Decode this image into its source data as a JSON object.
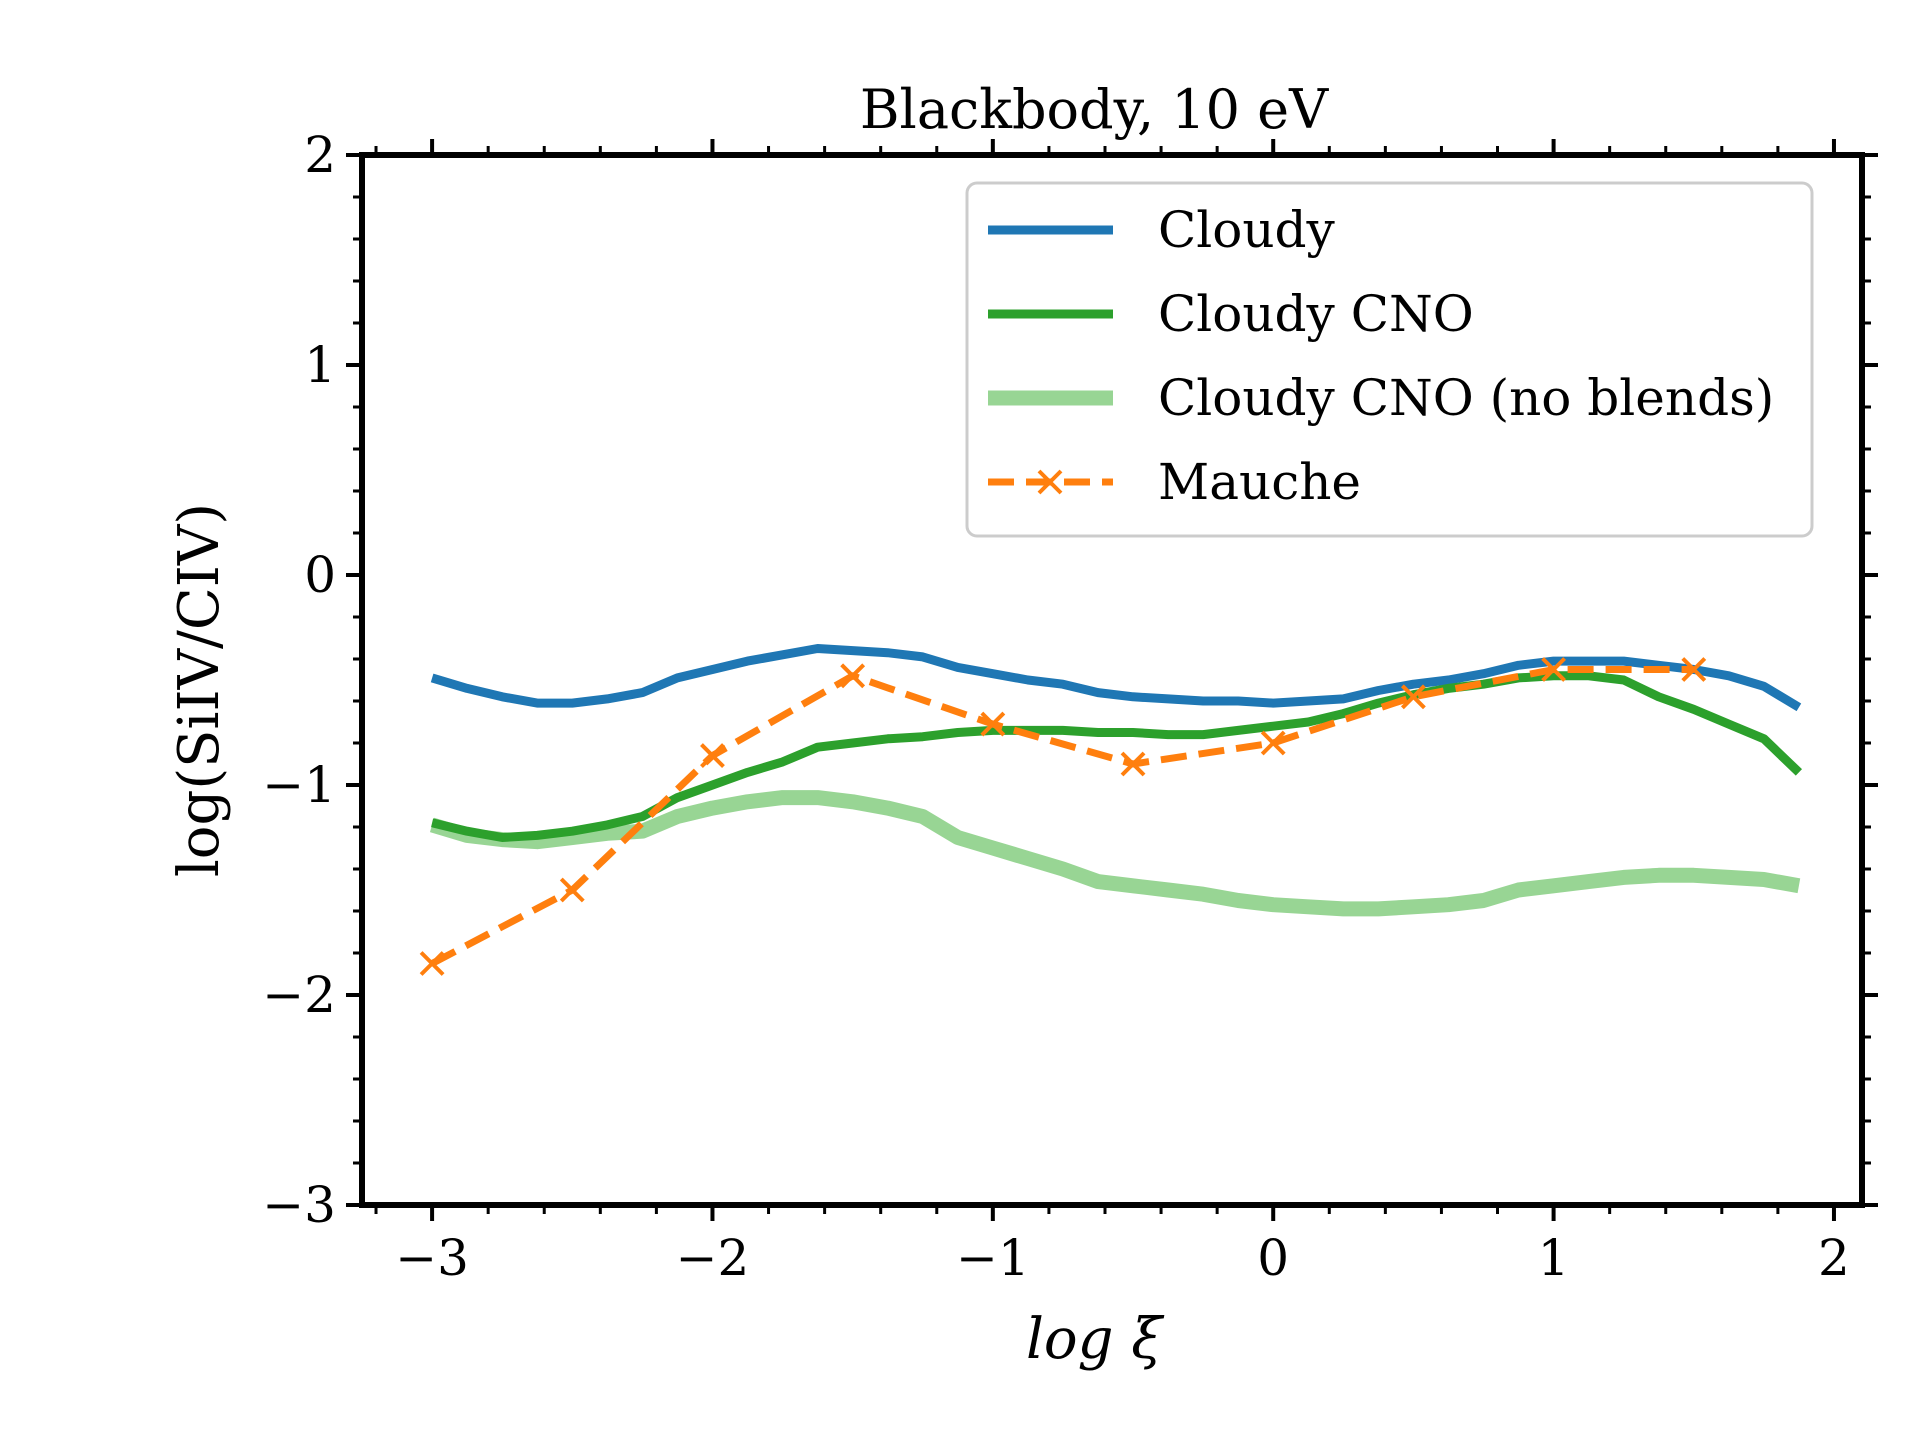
{
  "chart_data": {
    "type": "line",
    "title": "Blackbody, 10 eV",
    "xlabel": "log ξ",
    "ylabel": "log(SiIV/CIV)",
    "xlim": [
      -3.25,
      2.1
    ],
    "ylim": [
      -3,
      2
    ],
    "xticks": [
      -3,
      -2,
      -1,
      0,
      1,
      2
    ],
    "xtick_labels": [
      "−3",
      "−2",
      "−1",
      "0",
      "1",
      "2"
    ],
    "yticks": [
      -3,
      -2,
      -1,
      0,
      1,
      2
    ],
    "ytick_labels": [
      "−3",
      "−2",
      "−1",
      "0",
      "1",
      "2"
    ],
    "grid": false,
    "legend_position": "top-right",
    "series": [
      {
        "name": "Cloudy",
        "color": "#1f77b4",
        "style": "solid",
        "x": [
          -3.0,
          -2.875,
          -2.75,
          -2.625,
          -2.5,
          -2.375,
          -2.25,
          -2.125,
          -2.0,
          -1.875,
          -1.75,
          -1.625,
          -1.5,
          -1.375,
          -1.25,
          -1.125,
          -1.0,
          -0.875,
          -0.75,
          -0.625,
          -0.5,
          -0.375,
          -0.25,
          -0.125,
          0.0,
          0.125,
          0.25,
          0.375,
          0.5,
          0.625,
          0.75,
          0.875,
          1.0,
          1.125,
          1.25,
          1.375,
          1.5,
          1.625,
          1.75,
          1.875
        ],
        "y": [
          -0.49,
          -0.54,
          -0.58,
          -0.61,
          -0.61,
          -0.59,
          -0.56,
          -0.49,
          -0.45,
          -0.41,
          -0.38,
          -0.35,
          -0.36,
          -0.37,
          -0.39,
          -0.44,
          -0.47,
          -0.5,
          -0.52,
          -0.56,
          -0.58,
          -0.59,
          -0.6,
          -0.6,
          -0.61,
          -0.6,
          -0.59,
          -0.55,
          -0.52,
          -0.5,
          -0.47,
          -0.43,
          -0.41,
          -0.41,
          -0.41,
          -0.43,
          -0.45,
          -0.48,
          -0.53,
          -0.63
        ]
      },
      {
        "name": "Cloudy CNO",
        "color": "#2ca02c",
        "style": "solid",
        "x": [
          -3.0,
          -2.875,
          -2.75,
          -2.625,
          -2.5,
          -2.375,
          -2.25,
          -2.125,
          -2.0,
          -1.875,
          -1.75,
          -1.625,
          -1.5,
          -1.375,
          -1.25,
          -1.125,
          -1.0,
          -0.875,
          -0.75,
          -0.625,
          -0.5,
          -0.375,
          -0.25,
          -0.125,
          0.0,
          0.125,
          0.25,
          0.375,
          0.5,
          0.625,
          0.75,
          0.875,
          1.0,
          1.125,
          1.25,
          1.375,
          1.5,
          1.625,
          1.75,
          1.875
        ],
        "y": [
          -1.18,
          -1.22,
          -1.25,
          -1.24,
          -1.22,
          -1.19,
          -1.15,
          -1.06,
          -1.0,
          -0.94,
          -0.89,
          -0.82,
          -0.8,
          -0.78,
          -0.77,
          -0.75,
          -0.74,
          -0.74,
          -0.74,
          -0.75,
          -0.75,
          -0.76,
          -0.76,
          -0.74,
          -0.72,
          -0.7,
          -0.66,
          -0.61,
          -0.57,
          -0.54,
          -0.52,
          -0.49,
          -0.48,
          -0.48,
          -0.5,
          -0.58,
          -0.64,
          -0.71,
          -0.78,
          -0.94
        ]
      },
      {
        "name": "Cloudy CNO (no blends)",
        "color": "#98d594",
        "style": "solid",
        "x": [
          -3.0,
          -2.875,
          -2.75,
          -2.625,
          -2.5,
          -2.375,
          -2.25,
          -2.125,
          -2.0,
          -1.875,
          -1.75,
          -1.625,
          -1.5,
          -1.375,
          -1.25,
          -1.125,
          -1.0,
          -0.875,
          -0.75,
          -0.625,
          -0.5,
          -0.375,
          -0.25,
          -0.125,
          0.0,
          0.125,
          0.25,
          0.375,
          0.5,
          0.625,
          0.75,
          0.875,
          1.0,
          1.125,
          1.25,
          1.375,
          1.5,
          1.625,
          1.75,
          1.875
        ],
        "y": [
          -1.19,
          -1.24,
          -1.26,
          -1.27,
          -1.25,
          -1.23,
          -1.22,
          -1.15,
          -1.11,
          -1.08,
          -1.06,
          -1.06,
          -1.08,
          -1.11,
          -1.15,
          -1.25,
          -1.3,
          -1.35,
          -1.4,
          -1.46,
          -1.48,
          -1.5,
          -1.52,
          -1.55,
          -1.57,
          -1.58,
          -1.59,
          -1.59,
          -1.58,
          -1.57,
          -1.55,
          -1.5,
          -1.48,
          -1.46,
          -1.44,
          -1.43,
          -1.43,
          -1.44,
          -1.45,
          -1.48
        ]
      },
      {
        "name": "Mauche",
        "color": "#ff7f0e",
        "style": "dashed",
        "marker": "x",
        "x": [
          -3.0,
          -2.5,
          -2.0,
          -1.5,
          -1.0,
          -0.5,
          0.0,
          0.5,
          1.0,
          1.5
        ],
        "y": [
          -1.85,
          -1.5,
          -0.86,
          -0.48,
          -0.71,
          -0.9,
          -0.8,
          -0.58,
          -0.45,
          -0.45
        ]
      }
    ]
  }
}
